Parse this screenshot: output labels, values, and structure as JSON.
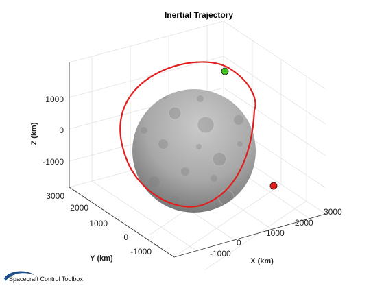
{
  "chart_data": {
    "type": "scatter3d",
    "title": "Inertial Trajectory",
    "xlabel": "X (km)",
    "ylabel": "Y (km)",
    "zlabel": "Z (km)",
    "xlim": [
      -1700,
      3400
    ],
    "ylim": [
      -1700,
      3300
    ],
    "zlim": [
      -1800,
      1800
    ],
    "xticks": [
      -1000,
      0,
      1000,
      2000,
      3000
    ],
    "yticks": [
      -1000,
      0,
      1000,
      2000,
      3000
    ],
    "zticks": [
      -1000,
      0,
      1000
    ],
    "grid": true,
    "body": {
      "name": "moon",
      "radius_km": 1737
    },
    "orbit": {
      "name": "trajectory",
      "color": "#e11d1d",
      "shape": "closed ellipse"
    },
    "markers": [
      {
        "name": "start",
        "color": "#3fc41f"
      },
      {
        "name": "end",
        "color": "#e11d1d"
      }
    ]
  },
  "footer": {
    "brand_text": "Spacecraft Control Toolbox",
    "brand_color": "#1d4f8a"
  },
  "colors": {
    "moon_light": "#c4c4c4",
    "moon_dark": "#5a5a5a",
    "axes": "#262626",
    "grid": "#e3e3e3"
  }
}
